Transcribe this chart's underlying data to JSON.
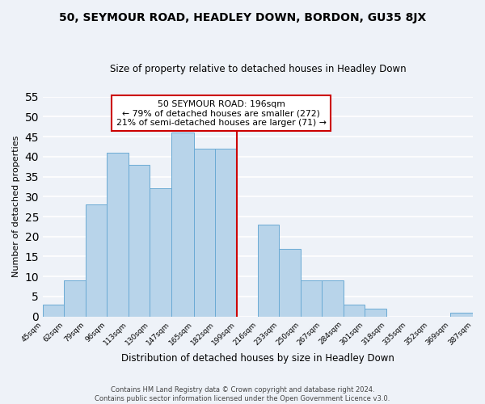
{
  "title": "50, SEYMOUR ROAD, HEADLEY DOWN, BORDON, GU35 8JX",
  "subtitle": "Size of property relative to detached houses in Headley Down",
  "xlabel": "Distribution of detached houses by size in Headley Down",
  "ylabel": "Number of detached properties",
  "footnote1": "Contains HM Land Registry data © Crown copyright and database right 2024.",
  "footnote2": "Contains public sector information licensed under the Open Government Licence v3.0.",
  "bar_edges": [
    45,
    62,
    79,
    96,
    113,
    130,
    147,
    165,
    182,
    199,
    216,
    233,
    250,
    267,
    284,
    301,
    318,
    335,
    352,
    369,
    387
  ],
  "bar_heights": [
    3,
    9,
    28,
    41,
    38,
    32,
    46,
    42,
    42,
    0,
    23,
    17,
    9,
    9,
    3,
    2,
    0,
    0,
    0,
    1
  ],
  "tick_labels": [
    "45sqm",
    "62sqm",
    "79sqm",
    "96sqm",
    "113sqm",
    "130sqm",
    "147sqm",
    "165sqm",
    "182sqm",
    "199sqm",
    "216sqm",
    "233sqm",
    "250sqm",
    "267sqm",
    "284sqm",
    "301sqm",
    "318sqm",
    "335sqm",
    "352sqm",
    "369sqm",
    "387sqm"
  ],
  "bar_color": "#b8d4ea",
  "bar_edge_color": "#6aaad4",
  "vline_x": 199,
  "vline_color": "#cc0000",
  "annotation_title": "50 SEYMOUR ROAD: 196sqm",
  "annotation_line1": "← 79% of detached houses are smaller (272)",
  "annotation_line2": "21% of semi-detached houses are larger (71) →",
  "annotation_box_color": "#ffffff",
  "annotation_box_edge": "#cc0000",
  "ylim": [
    0,
    55
  ],
  "yticks": [
    0,
    5,
    10,
    15,
    20,
    25,
    30,
    35,
    40,
    45,
    50,
    55
  ],
  "background_color": "#eef2f8",
  "grid_color": "#ffffff",
  "title_fontsize": 10,
  "subtitle_fontsize": 8.5,
  "ylabel_fontsize": 8,
  "xlabel_fontsize": 8.5,
  "tick_fontsize": 6.5,
  "footnote_fontsize": 6
}
